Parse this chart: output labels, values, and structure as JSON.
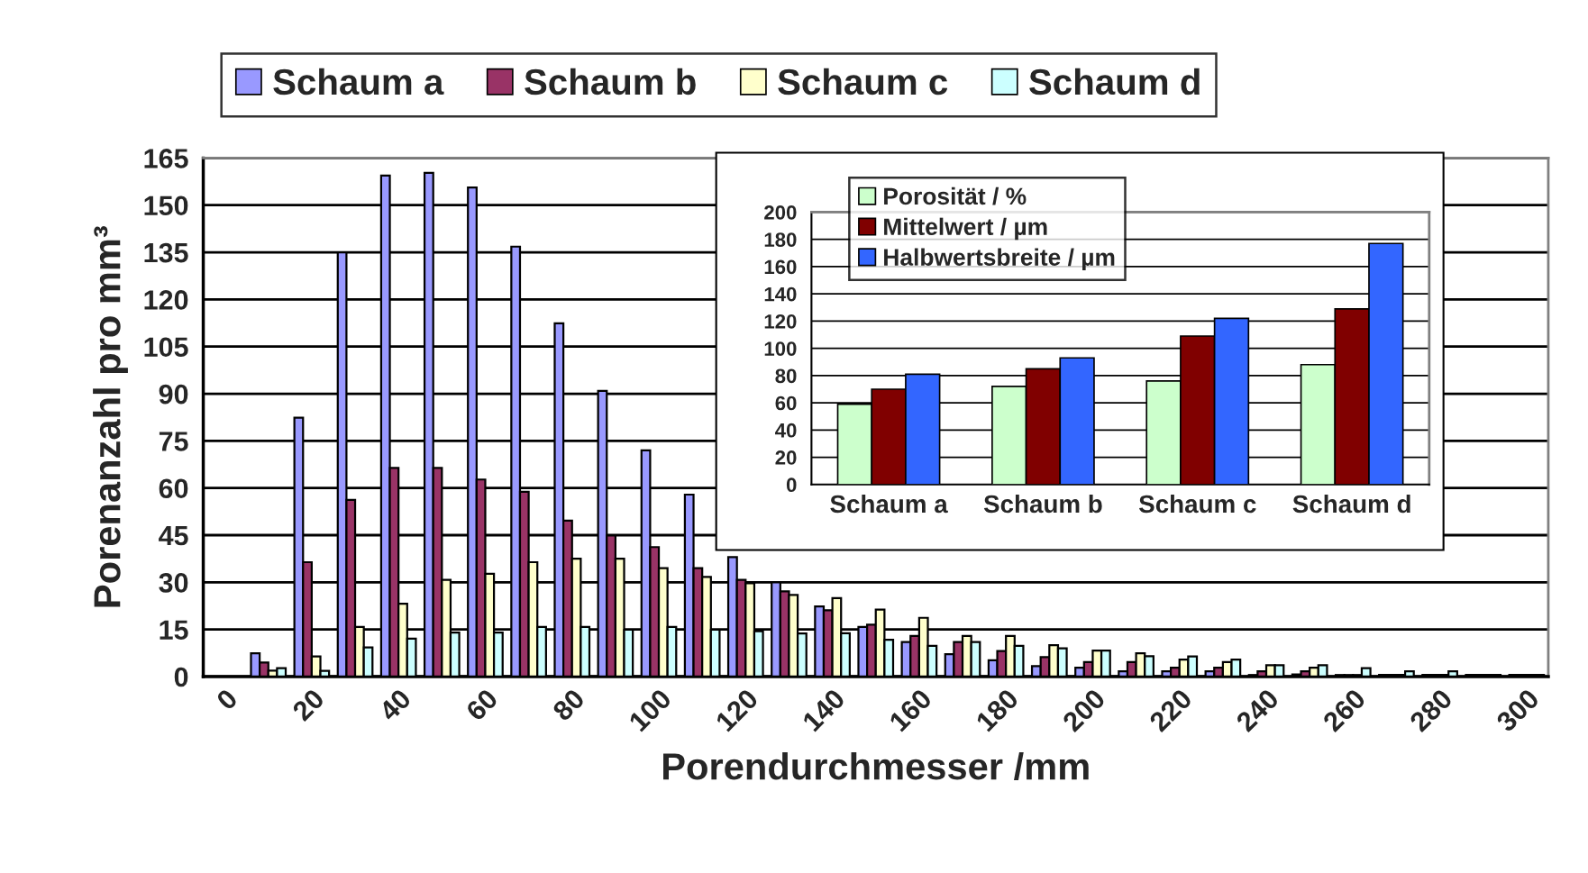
{
  "chart_data": [
    {
      "type": "bar",
      "xlabel": "Porendurchmesser /mm",
      "ylabel": "Porenanzahl pro mm³",
      "categories": [
        "0",
        null,
        "20",
        null,
        "40",
        null,
        "60",
        null,
        "80",
        null,
        "100",
        null,
        "120",
        null,
        "140",
        null,
        "160",
        null,
        "180",
        null,
        "200",
        null,
        "220",
        null,
        "240",
        null,
        "260",
        null,
        "280",
        null,
        "300"
      ],
      "series": [
        {
          "name": "Schaum a",
          "color": "#9999ff",
          "values": [
            0,
            7.4,
            82.4,
            135,
            159.4,
            160.3,
            155.6,
            136.8,
            112.4,
            90.9,
            72,
            57.9,
            38,
            30,
            22.3,
            15.8,
            11,
            7.1,
            5.2,
            3.3,
            2.8,
            1.7,
            1.7,
            1.7,
            0.5,
            0.7,
            0.5,
            0.5,
            0.5,
            0.5,
            0.5
          ]
        },
        {
          "name": "Schaum b",
          "color": "#993366",
          "values": [
            0,
            4.5,
            36.4,
            56.2,
            66.4,
            66.4,
            62.7,
            58.8,
            49.6,
            44.9,
            41.2,
            34.5,
            30.8,
            27.1,
            21.1,
            16.5,
            12.9,
            11,
            8.1,
            6.2,
            4.6,
            4.6,
            2.8,
            2.8,
            1.7,
            1.7,
            0.5,
            0.5,
            0.5,
            0.5,
            0.5
          ]
        },
        {
          "name": "Schaum c",
          "color": "#ffffcc",
          "values": [
            0,
            1.9,
            6.4,
            15.8,
            23.2,
            30.8,
            32.7,
            36.4,
            37.5,
            37.5,
            34.5,
            31.7,
            29.7,
            26,
            25,
            21.3,
            18.7,
            12.9,
            12.9,
            10,
            8.3,
            7.4,
            5.4,
            4.6,
            3.6,
            2.8,
            0.5,
            0.5,
            0.5,
            0.5,
            0.5
          ]
        },
        {
          "name": "Schaum d",
          "color": "#ccffff",
          "values": [
            0,
            2.7,
            1.8,
            9.3,
            12.1,
            14,
            14,
            15.8,
            15.8,
            14.9,
            15.8,
            14.9,
            14.4,
            13.7,
            13.8,
            11.7,
            9.8,
            11,
            9.8,
            9,
            8.3,
            6.5,
            6.4,
            5.4,
            3.6,
            3.6,
            2.7,
            1.7,
            1.7,
            0.5,
            0.5
          ]
        }
      ],
      "ylim": [
        0,
        165
      ],
      "yticks": [
        0,
        15,
        30,
        45,
        60,
        75,
        90,
        105,
        120,
        135,
        150,
        165
      ],
      "grid": "y",
      "legend": "top"
    },
    {
      "type": "bar",
      "categories": [
        "Schaum a",
        "Schaum b",
        "Schaum c",
        "Schaum d"
      ],
      "series": [
        {
          "name": "Porosität / %",
          "color": "#ccffcc",
          "values": [
            59,
            72,
            76,
            88
          ]
        },
        {
          "name": "Mittelwert / µm",
          "color": "#800000",
          "values": [
            70,
            85,
            109,
            129
          ]
        },
        {
          "name": "Halbwertsbreite / µm",
          "color": "#3366ff",
          "values": [
            81,
            93,
            122,
            177
          ]
        }
      ],
      "ylim": [
        0,
        200
      ],
      "yticks": [
        0,
        20,
        40,
        60,
        80,
        100,
        120,
        140,
        160,
        180,
        200
      ],
      "grid": "y",
      "legend": "top"
    }
  ]
}
